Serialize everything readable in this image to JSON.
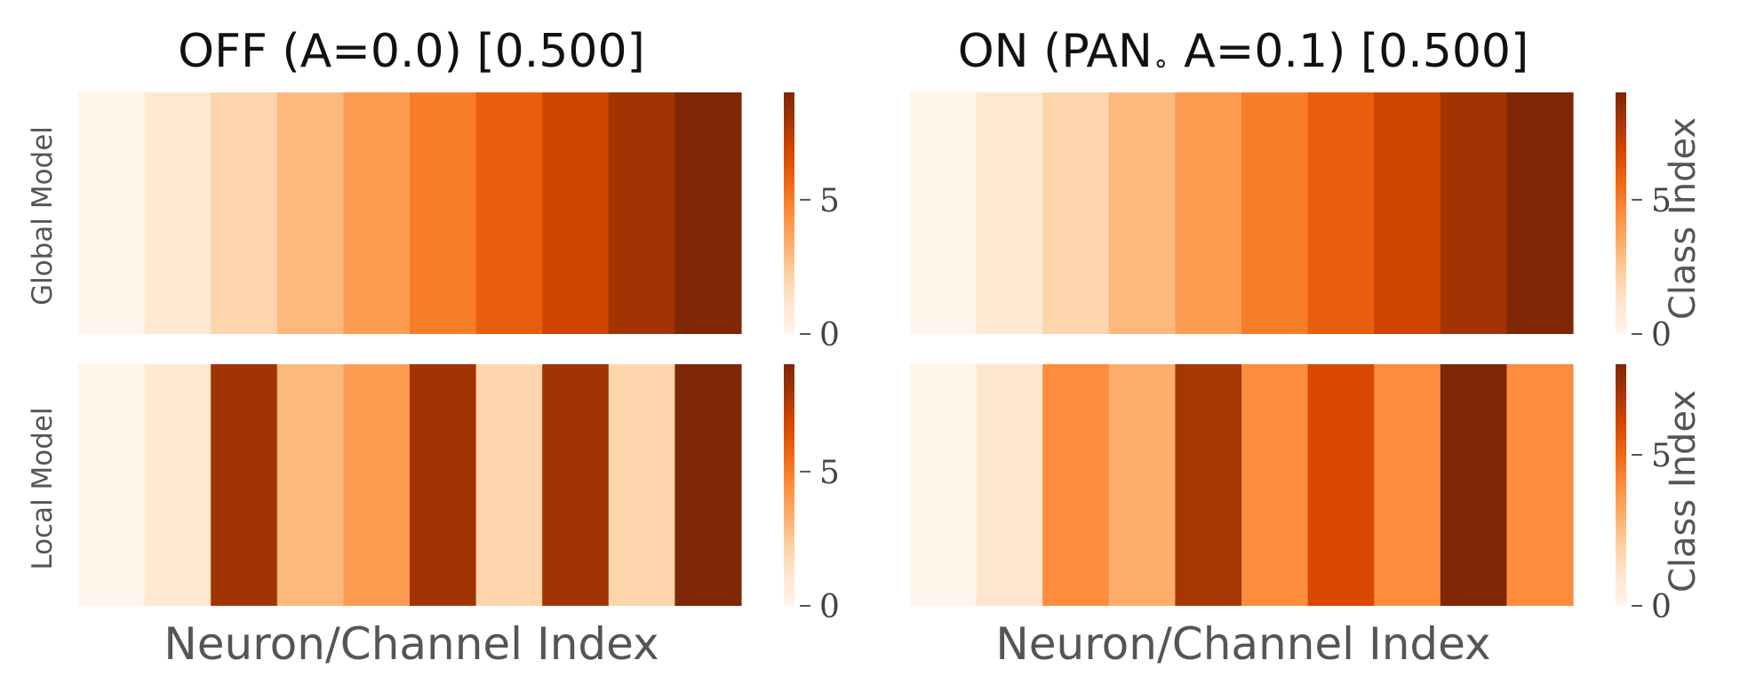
{
  "chart_data": [
    {
      "type": "heatmap",
      "title": "OFF (A=0.0) [0.500]",
      "row_label": "Global Model",
      "xlabel": "",
      "values": [
        0,
        1,
        2,
        3,
        4,
        5,
        6,
        7,
        8,
        9
      ],
      "colorbar": {
        "min": 0,
        "max": 9,
        "ticks": [
          0,
          5
        ],
        "label": ""
      }
    },
    {
      "type": "heatmap",
      "title": "ON (PAN₀ A=0.1) [0.500]",
      "title_main": "ON (PAN",
      "title_sub": "∘",
      "title_rest": " A=0.1) [0.500]",
      "row_label": "Global Model",
      "xlabel": "",
      "values": [
        0,
        1,
        2,
        3,
        4,
        5,
        6,
        7,
        8,
        9
      ],
      "colorbar": {
        "min": 0,
        "max": 9,
        "ticks": [
          0,
          5
        ],
        "label": "Class Index"
      }
    },
    {
      "type": "heatmap",
      "title": "",
      "row_label": "Local Model",
      "xlabel": "Neuron/Channel Index",
      "values": [
        0,
        1,
        8,
        3,
        4,
        8,
        2,
        8,
        2,
        9
      ],
      "colorbar": {
        "min": 0,
        "max": 9,
        "ticks": [
          0,
          5
        ],
        "label": ""
      }
    },
    {
      "type": "heatmap",
      "title": "",
      "row_label": "Local Model",
      "xlabel": "Neuron/Channel Index",
      "values": [
        0,
        1,
        4,
        3,
        7,
        4,
        6,
        4,
        8,
        4
      ],
      "colorbar": {
        "min": 0,
        "max": 8,
        "ticks": [
          0,
          5
        ],
        "label": "Class Index"
      }
    }
  ],
  "colormap": {
    "name": "Oranges",
    "stops": [
      "#fff5eb",
      "#fee6ce",
      "#fdd0a2",
      "#fdae6b",
      "#fd8d3c",
      "#f16913",
      "#d94801",
      "#a63603",
      "#7f2704"
    ]
  }
}
